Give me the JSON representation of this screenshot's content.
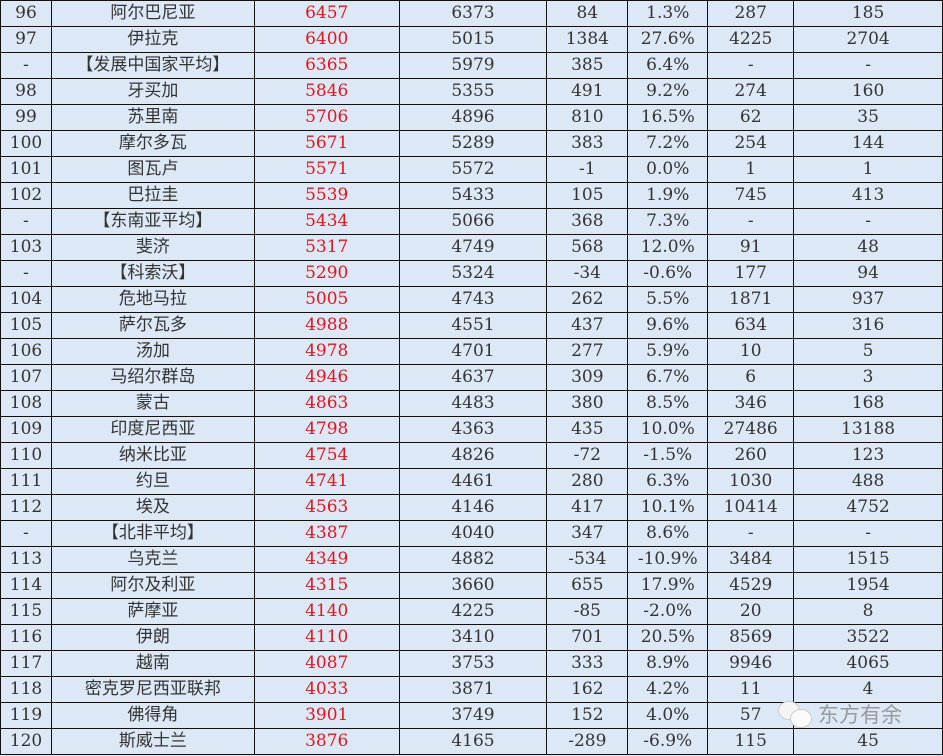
{
  "rows": [
    [
      "96",
      "阿尔巴尼亚",
      "6457",
      "6373",
      "84",
      "1.3%",
      "287",
      "185"
    ],
    [
      "97",
      "伊拉克",
      "6400",
      "5015",
      "1384",
      "27.6%",
      "4225",
      "2704"
    ],
    [
      "-",
      "【发展中国家平均】",
      "6365",
      "5979",
      "385",
      "6.4%",
      "-",
      "-"
    ],
    [
      "98",
      "牙买加",
      "5846",
      "5355",
      "491",
      "9.2%",
      "274",
      "160"
    ],
    [
      "99",
      "苏里南",
      "5706",
      "4896",
      "810",
      "16.5%",
      "62",
      "35"
    ],
    [
      "100",
      "摩尔多瓦",
      "5671",
      "5289",
      "383",
      "7.2%",
      "254",
      "144"
    ],
    [
      "101",
      "图瓦卢",
      "5571",
      "5572",
      "-1",
      "0.0%",
      "1",
      "1"
    ],
    [
      "102",
      "巴拉圭",
      "5539",
      "5433",
      "105",
      "1.9%",
      "745",
      "413"
    ],
    [
      "-",
      "【东南亚平均】",
      "5434",
      "5066",
      "368",
      "7.3%",
      "-",
      "-"
    ],
    [
      "103",
      "斐济",
      "5317",
      "4749",
      "568",
      "12.0%",
      "91",
      "48"
    ],
    [
      "-",
      "【科索沃】",
      "5290",
      "5324",
      "-34",
      "-0.6%",
      "177",
      "94"
    ],
    [
      "104",
      "危地马拉",
      "5005",
      "4743",
      "262",
      "5.5%",
      "1871",
      "937"
    ],
    [
      "105",
      "萨尔瓦多",
      "4988",
      "4551",
      "437",
      "9.6%",
      "634",
      "316"
    ],
    [
      "106",
      "汤加",
      "4978",
      "4701",
      "277",
      "5.9%",
      "10",
      "5"
    ],
    [
      "107",
      "马绍尔群岛",
      "4946",
      "4637",
      "309",
      "6.7%",
      "6",
      "3"
    ],
    [
      "108",
      "蒙古",
      "4863",
      "4483",
      "380",
      "8.5%",
      "346",
      "168"
    ],
    [
      "109",
      "印度尼西亚",
      "4798",
      "4363",
      "435",
      "10.0%",
      "27486",
      "13188"
    ],
    [
      "110",
      "纳米比亚",
      "4754",
      "4826",
      "-72",
      "-1.5%",
      "260",
      "123"
    ],
    [
      "111",
      "约旦",
      "4741",
      "4461",
      "280",
      "6.3%",
      "1030",
      "488"
    ],
    [
      "112",
      "埃及",
      "4563",
      "4146",
      "417",
      "10.1%",
      "10414",
      "4752"
    ],
    [
      "-",
      "【北非平均】",
      "4387",
      "4040",
      "347",
      "8.6%",
      "-",
      "-"
    ],
    [
      "113",
      "乌克兰",
      "4349",
      "4882",
      "-534",
      "-10.9%",
      "3484",
      "1515"
    ],
    [
      "114",
      "阿尔及利亚",
      "4315",
      "3660",
      "655",
      "17.9%",
      "4529",
      "1954"
    ],
    [
      "115",
      "萨摩亚",
      "4140",
      "4225",
      "-85",
      "-2.0%",
      "20",
      "8"
    ],
    [
      "116",
      "伊朗",
      "4110",
      "3410",
      "701",
      "20.5%",
      "8569",
      "3522"
    ],
    [
      "117",
      "越南",
      "4087",
      "3753",
      "333",
      "8.9%",
      "9946",
      "4065"
    ],
    [
      "118",
      "密克罗尼西亚联邦",
      "4033",
      "3871",
      "162",
      "4.2%",
      "11",
      "4"
    ],
    [
      "119",
      "佛得角",
      "3901",
      "3749",
      "152",
      "4.0%",
      "57",
      ""
    ],
    [
      "120",
      "斯威士兰",
      "3876",
      "4165",
      "-289",
      "-6.9%",
      "115",
      "45"
    ]
  ],
  "watermark": "东方有余",
  "colors": {
    "background": "#dce8f5",
    "highlight": "#e8141c",
    "border": "#111111"
  }
}
